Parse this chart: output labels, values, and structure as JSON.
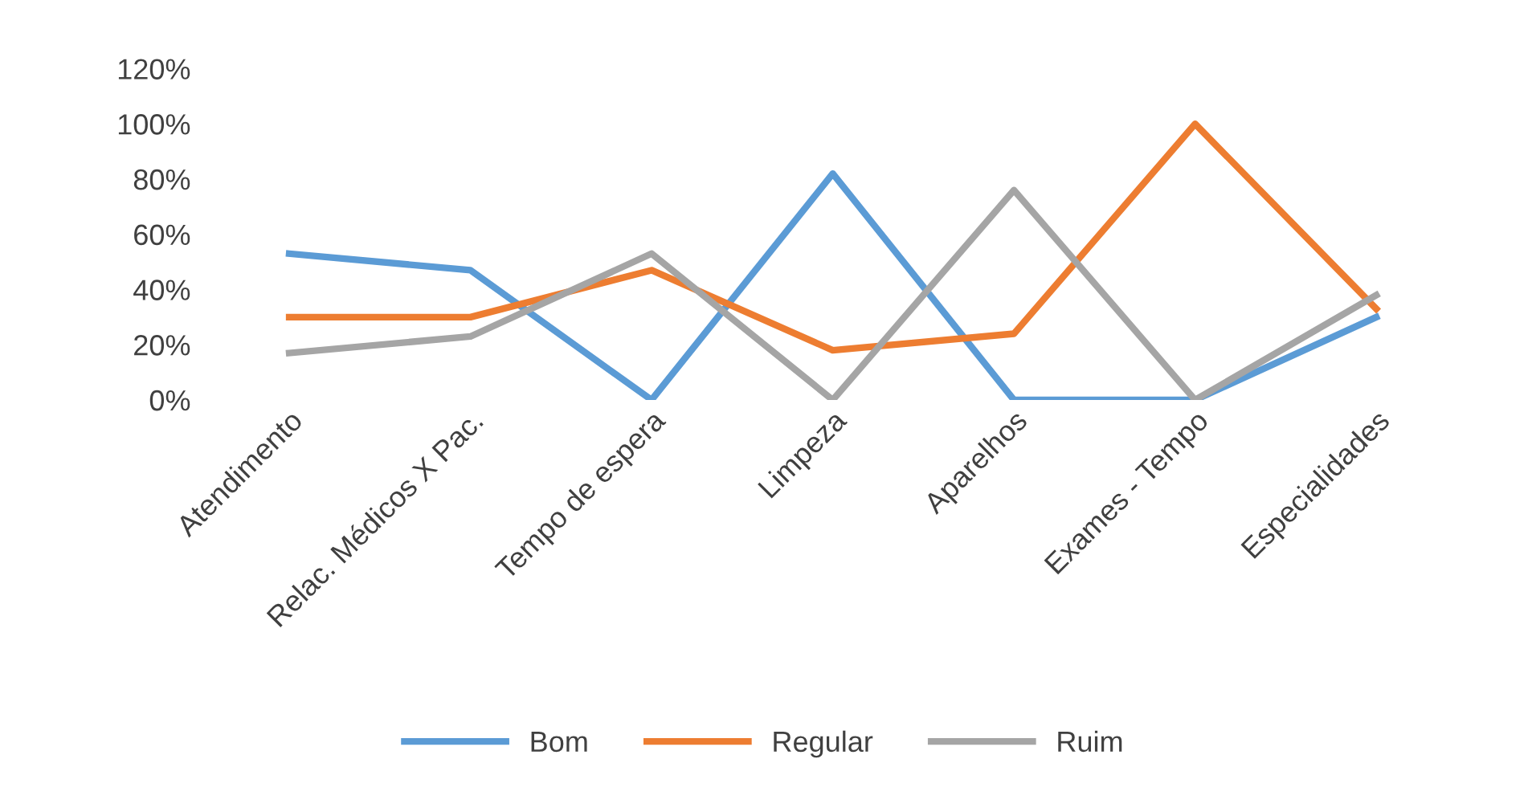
{
  "chart_data": {
    "type": "line",
    "categories": [
      "Atendimento",
      "Relac. Médicos X Pac.",
      "Tempo de espera",
      "Limpeza",
      "Aparelhos",
      "Exames - Tempo",
      "Especialidades"
    ],
    "series": [
      {
        "name": "Bom",
        "color": "#5b9bd5",
        "values": [
          53,
          47,
          0,
          82,
          0,
          0,
          30
        ]
      },
      {
        "name": "Regular",
        "color": "#ed7d31",
        "values": [
          30,
          30,
          47,
          18,
          24,
          100,
          33
        ]
      },
      {
        "name": "Ruim",
        "color": "#a5a5a5",
        "values": [
          17,
          23,
          53,
          0,
          76,
          0,
          38
        ]
      }
    ],
    "ylim": [
      0,
      120
    ],
    "yticks": [
      {
        "value": 0,
        "label": "0%"
      },
      {
        "value": 20,
        "label": "20%"
      },
      {
        "value": 40,
        "label": "40%"
      },
      {
        "value": 60,
        "label": "60%"
      },
      {
        "value": 80,
        "label": "80%"
      },
      {
        "value": 100,
        "label": "100%"
      },
      {
        "value": 120,
        "label": "120%"
      }
    ],
    "grid": false,
    "legend": "bottom",
    "marker": "none",
    "line_style": "solid"
  }
}
